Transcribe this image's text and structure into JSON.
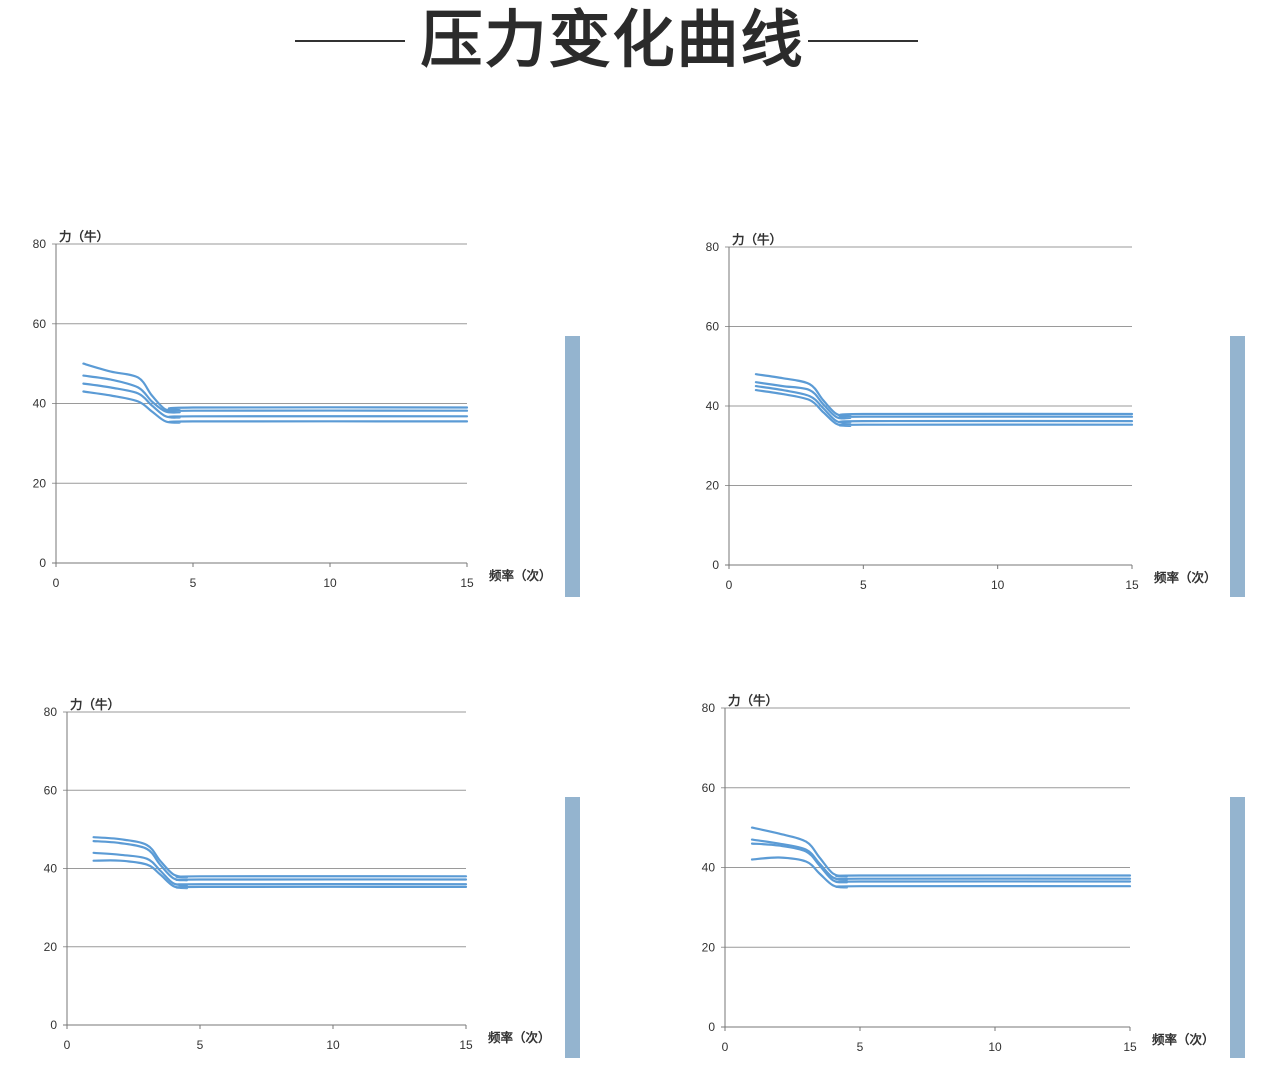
{
  "title": "压力变化曲线",
  "colors": {
    "line": "#5b9bd5",
    "grid": "#9a9a9a",
    "side_bar": "#94b4cf",
    "title": "#2b2b2b"
  },
  "chart_data": [
    {
      "type": "line",
      "xlabel": "频率（次）",
      "ylabel": "力（牛）",
      "xlim": [
        0,
        15
      ],
      "ylim": [
        0,
        80
      ],
      "xticks": [
        "0",
        "5",
        "10",
        "15"
      ],
      "yticks": [
        "0",
        "20",
        "40",
        "60",
        "80"
      ],
      "grid": "horizontal",
      "series": [
        {
          "x": [
            1,
            2,
            3,
            3.5,
            4,
            4.5,
            5,
            15
          ],
          "values": [
            50,
            48,
            46.5,
            42,
            38.5,
            38.3,
            39,
            39
          ]
        },
        {
          "x": [
            1,
            2,
            3,
            3.5,
            4,
            4.5,
            5,
            15
          ],
          "values": [
            47,
            46,
            44,
            40.5,
            38,
            37.8,
            38.2,
            38.2
          ]
        },
        {
          "x": [
            1,
            2,
            3,
            3.5,
            4,
            4.5,
            5,
            15
          ],
          "values": [
            45,
            44,
            42.5,
            39.5,
            36.8,
            36.5,
            36.8,
            36.8
          ]
        },
        {
          "x": [
            1,
            2,
            3,
            3.5,
            4,
            4.5,
            5,
            15
          ],
          "values": [
            43,
            42,
            40.5,
            38,
            35.5,
            35.2,
            35.5,
            35.5
          ]
        }
      ]
    },
    {
      "type": "line",
      "xlabel": "频率（次）",
      "ylabel": "力（牛）",
      "xlim": [
        0,
        15
      ],
      "ylim": [
        0,
        80
      ],
      "xticks": [
        "0",
        "5",
        "10",
        "15"
      ],
      "yticks": [
        "0",
        "20",
        "40",
        "60",
        "80"
      ],
      "grid": "horizontal",
      "series": [
        {
          "x": [
            1,
            2,
            3,
            3.5,
            4,
            4.5,
            5,
            15
          ],
          "values": [
            48,
            47,
            45.5,
            41.5,
            38,
            37.5,
            38,
            38
          ]
        },
        {
          "x": [
            1,
            2,
            3,
            3.5,
            4,
            4.5,
            5,
            15
          ],
          "values": [
            46,
            45,
            44,
            40.5,
            37.2,
            37,
            37.3,
            37.3
          ]
        },
        {
          "x": [
            1,
            2,
            3,
            3.5,
            4,
            4.5,
            5,
            15
          ],
          "values": [
            45,
            44,
            42.5,
            39.5,
            36.2,
            35.8,
            36.2,
            36.2
          ]
        },
        {
          "x": [
            1,
            2,
            3,
            3.5,
            4,
            4.5,
            5,
            15
          ],
          "values": [
            44,
            43,
            41.5,
            38.5,
            35.5,
            35,
            35.3,
            35.3
          ]
        }
      ]
    },
    {
      "type": "line",
      "xlabel": "频率（次）",
      "ylabel": "力（牛）",
      "xlim": [
        0,
        15
      ],
      "ylim": [
        0,
        80
      ],
      "xticks": [
        "0",
        "5",
        "10",
        "15"
      ],
      "yticks": [
        "0",
        "20",
        "40",
        "60",
        "80"
      ],
      "grid": "horizontal",
      "series": [
        {
          "x": [
            1,
            2,
            3,
            3.5,
            4,
            4.5,
            5,
            15
          ],
          "values": [
            48,
            47.5,
            46,
            42,
            38.5,
            37.8,
            38,
            38
          ]
        },
        {
          "x": [
            1,
            2,
            3,
            3.5,
            4,
            4.5,
            5,
            15
          ],
          "values": [
            47,
            46.5,
            45,
            41,
            37.5,
            37,
            37.2,
            37.2
          ]
        },
        {
          "x": [
            1,
            2,
            3,
            3.5,
            4,
            4.5,
            5,
            15
          ],
          "values": [
            44,
            43.5,
            42.5,
            39.5,
            36.2,
            35.8,
            36,
            36
          ]
        },
        {
          "x": [
            1,
            2,
            3,
            3.5,
            4,
            4.5,
            5,
            15
          ],
          "values": [
            42,
            42,
            41,
            38.5,
            35.5,
            35,
            35.3,
            35.3
          ]
        }
      ]
    },
    {
      "type": "line",
      "xlabel": "频率（次）",
      "ylabel": "力（牛）",
      "xlim": [
        0,
        15
      ],
      "ylim": [
        0,
        80
      ],
      "xticks": [
        "0",
        "5",
        "10",
        "15"
      ],
      "yticks": [
        "0",
        "20",
        "40",
        "60",
        "80"
      ],
      "grid": "horizontal",
      "series": [
        {
          "x": [
            1,
            2,
            3,
            3.5,
            4,
            4.5,
            5,
            15
          ],
          "values": [
            50,
            48.5,
            46.5,
            42.5,
            38.5,
            37.8,
            38,
            38
          ]
        },
        {
          "x": [
            1,
            2,
            3,
            3.5,
            4,
            4.5,
            5,
            15
          ],
          "values": [
            47,
            46,
            44.5,
            41,
            37.5,
            37,
            37.2,
            37.2
          ]
        },
        {
          "x": [
            1,
            2,
            3,
            3.5,
            4,
            4.5,
            5,
            15
          ],
          "values": [
            46,
            45.5,
            44,
            40.5,
            36.8,
            36.3,
            36.5,
            36.5
          ]
        },
        {
          "x": [
            1,
            2,
            3,
            3.5,
            4,
            4.5,
            5,
            15
          ],
          "values": [
            42,
            42.5,
            41.5,
            38.5,
            35.5,
            35,
            35.3,
            35.3
          ]
        }
      ]
    }
  ]
}
